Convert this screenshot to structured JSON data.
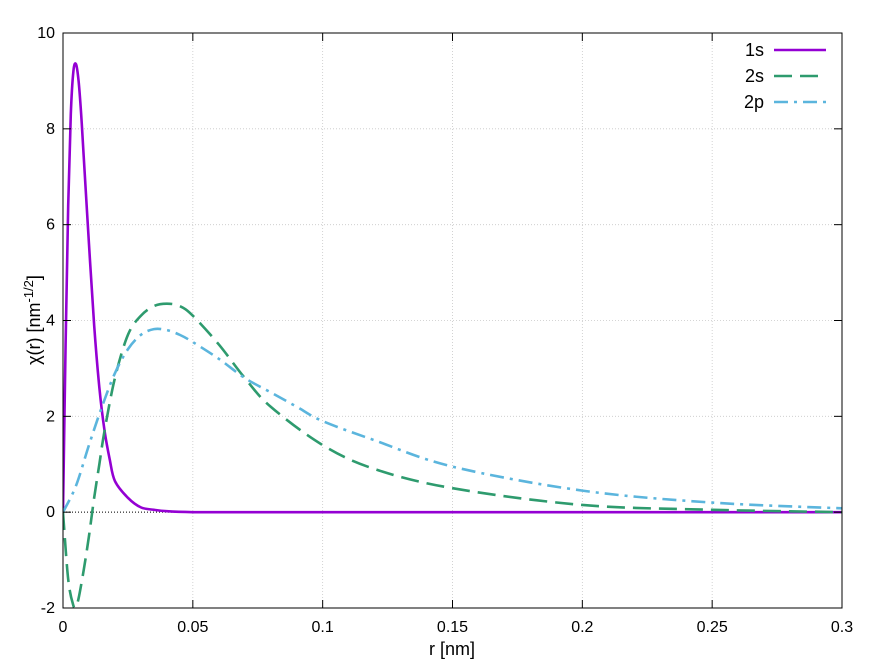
{
  "chart_data": {
    "type": "line",
    "title": "",
    "xlabel": "r [nm]",
    "ylabel": {
      "base": "χ(r) [nm",
      "sup": "-1/2",
      "close": "]"
    },
    "xlim": [
      0,
      0.3
    ],
    "ylim": [
      -2,
      10
    ],
    "x_ticks": [
      0,
      0.05,
      0.1,
      0.15,
      0.2,
      0.25,
      0.3
    ],
    "x_tick_labels": [
      "0",
      "0.05",
      "0.1",
      "0.15",
      "0.2",
      "0.25",
      "0.3"
    ],
    "y_ticks": [
      -2,
      0,
      2,
      4,
      6,
      8,
      10
    ],
    "y_tick_labels": [
      "-2",
      "0",
      "2",
      "4",
      "6",
      "8",
      "10"
    ],
    "grid": true,
    "zero_line": true,
    "legend_position": "top-right",
    "series": [
      {
        "name": "1s",
        "color": "#9400D3",
        "style": "solid",
        "x": [
          0,
          0.001,
          0.002,
          0.003,
          0.004,
          0.005,
          0.006,
          0.007,
          0.008,
          0.01,
          0.012,
          0.014,
          0.016,
          0.018,
          0.02,
          0.025,
          0.03,
          0.035,
          0.04,
          0.05,
          0.06,
          0.08,
          0.1,
          0.15,
          0.2,
          0.25,
          0.3
        ],
        "y": [
          0,
          3.5,
          6.4,
          8.3,
          9.2,
          9.35,
          9.0,
          8.3,
          7.4,
          5.6,
          3.9,
          2.6,
          1.7,
          1.1,
          0.65,
          0.3,
          0.1,
          0.05,
          0.02,
          0.0,
          0.0,
          0.0,
          0.0,
          0.0,
          0.0,
          0.0,
          0.0
        ]
      },
      {
        "name": "2s",
        "color": "#2E9B6E",
        "style": "dashed",
        "x": [
          0,
          0.002,
          0.004,
          0.005,
          0.006,
          0.008,
          0.01,
          0.012,
          0.014,
          0.016,
          0.02,
          0.025,
          0.03,
          0.035,
          0.04,
          0.045,
          0.05,
          0.06,
          0.07,
          0.08,
          0.1,
          0.12,
          0.15,
          0.2,
          0.25,
          0.3
        ],
        "y": [
          0,
          -1.4,
          -1.95,
          -1.95,
          -1.8,
          -1.2,
          -0.5,
          0.3,
          1.0,
          1.7,
          2.8,
          3.7,
          4.1,
          4.3,
          4.35,
          4.3,
          4.1,
          3.5,
          2.8,
          2.2,
          1.4,
          0.9,
          0.5,
          0.15,
          0.05,
          0.0
        ]
      },
      {
        "name": "2p",
        "color": "#5BB5DD",
        "style": "dashdot",
        "x": [
          0,
          0.005,
          0.01,
          0.015,
          0.02,
          0.025,
          0.03,
          0.035,
          0.04,
          0.045,
          0.05,
          0.06,
          0.07,
          0.08,
          0.09,
          0.1,
          0.12,
          0.15,
          0.2,
          0.25,
          0.3
        ],
        "y": [
          0,
          0.55,
          1.4,
          2.2,
          2.9,
          3.4,
          3.7,
          3.82,
          3.8,
          3.7,
          3.55,
          3.2,
          2.8,
          2.5,
          2.2,
          1.9,
          1.5,
          0.95,
          0.45,
          0.2,
          0.08
        ]
      }
    ]
  }
}
